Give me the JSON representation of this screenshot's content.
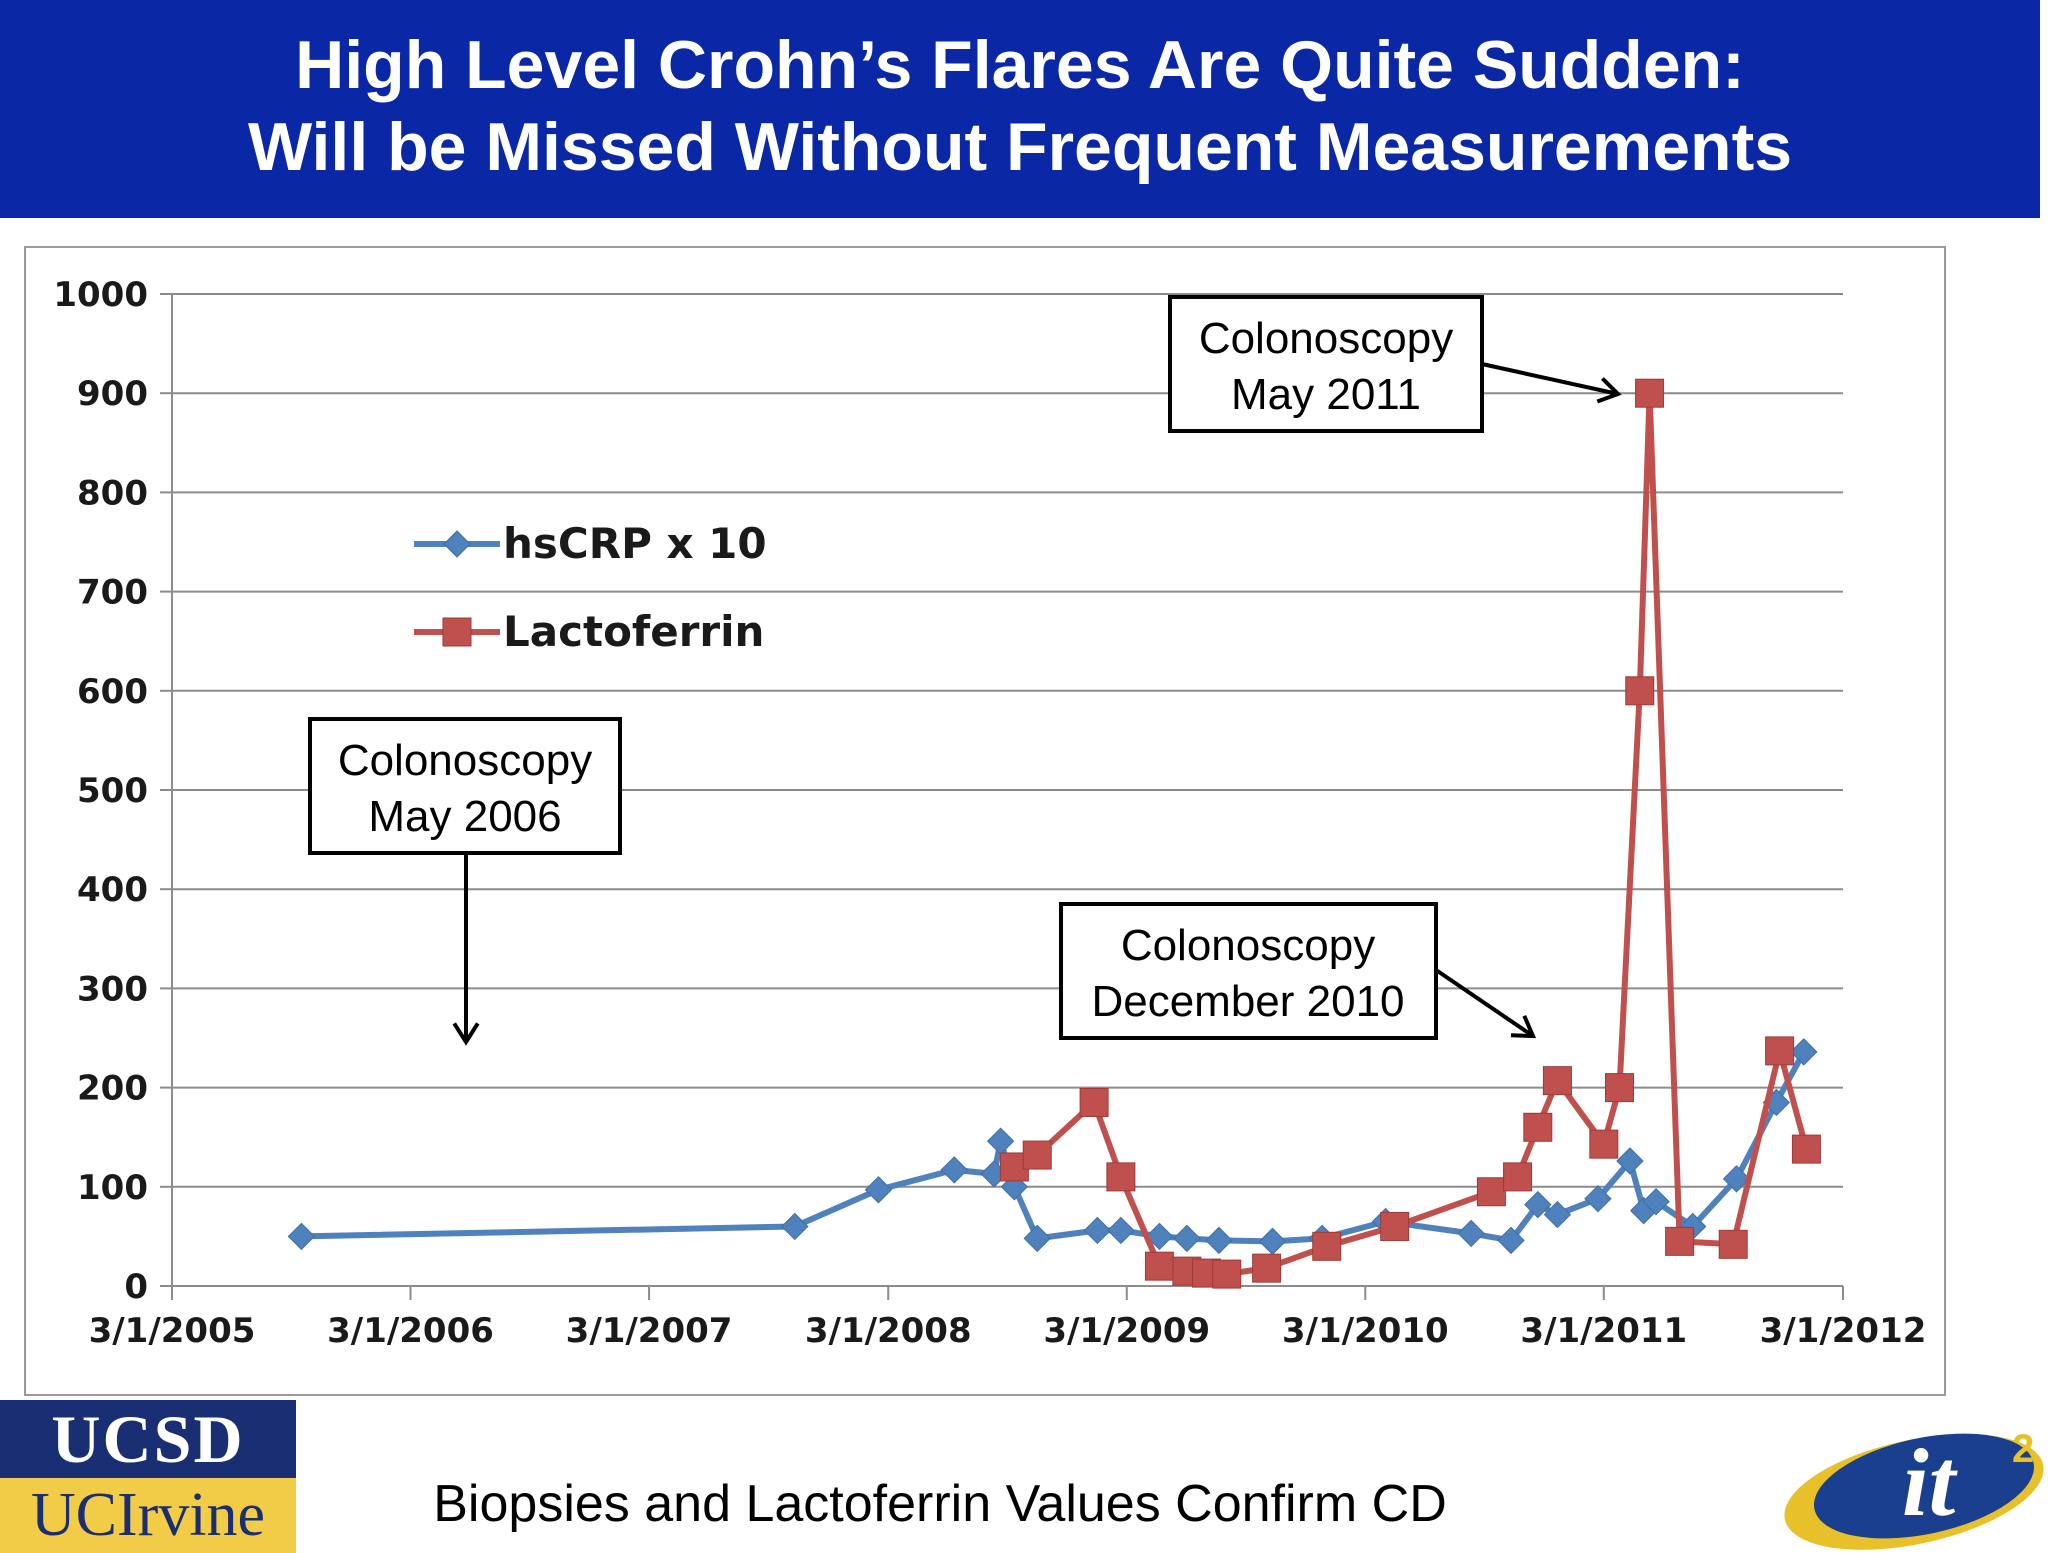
{
  "header": {
    "title_line1": "High Level Crohn’s Flares Are Quite Sudden:",
    "title_line2": "Will be Missed Without Frequent Measurements",
    "background": "#0a27a6"
  },
  "footer": {
    "caption": "Biopsies and Lactoferrin Values Confirm CD",
    "logo_top": "UCSD",
    "logo_bottom": "UCIrvine",
    "logo_right": "it",
    "logo_right_sup": "2"
  },
  "chart_data": {
    "type": "line",
    "ylim": [
      0,
      1000
    ],
    "yticks": [
      0,
      100,
      200,
      300,
      400,
      500,
      600,
      700,
      800,
      900,
      1000
    ],
    "xlim": [
      "2005-03-01",
      "2012-03-01"
    ],
    "xtick_labels": [
      "3/1/2005",
      "3/1/2006",
      "3/1/2007",
      "3/1/2008",
      "3/1/2009",
      "3/1/2010",
      "3/1/2011",
      "3/1/2012"
    ],
    "xtick_dates": [
      "2005-03-01",
      "2006-03-01",
      "2007-03-01",
      "2008-03-01",
      "2009-03-01",
      "2010-03-01",
      "2011-03-01",
      "2012-03-01"
    ],
    "grid": true,
    "legend_position": "upper-left",
    "series": [
      {
        "name": "hsCRP x 10",
        "color": "#4f81bd",
        "marker": "diamond",
        "points": [
          [
            "2005-09-15",
            50
          ],
          [
            "2007-10-10",
            60
          ],
          [
            "2008-02-15",
            97
          ],
          [
            "2008-06-10",
            117
          ],
          [
            "2008-08-10",
            113
          ],
          [
            "2008-08-20",
            146
          ],
          [
            "2008-09-10",
            100
          ],
          [
            "2008-10-15",
            48
          ],
          [
            "2009-01-15",
            56
          ],
          [
            "2009-02-20",
            56
          ],
          [
            "2009-04-20",
            50
          ],
          [
            "2009-06-01",
            48
          ],
          [
            "2009-07-20",
            46
          ],
          [
            "2009-10-10",
            45
          ],
          [
            "2009-12-25",
            48
          ],
          [
            "2010-04-01",
            65
          ],
          [
            "2010-08-10",
            53
          ],
          [
            "2010-10-10",
            46
          ],
          [
            "2010-11-20",
            82
          ],
          [
            "2010-12-20",
            72
          ],
          [
            "2011-02-20",
            88
          ],
          [
            "2011-04-10",
            126
          ],
          [
            "2011-05-01",
            76
          ],
          [
            "2011-05-20",
            85
          ],
          [
            "2011-07-15",
            60
          ],
          [
            "2011-09-20",
            108
          ],
          [
            "2011-11-20",
            185
          ],
          [
            "2012-01-01",
            236
          ]
        ]
      },
      {
        "name": "Lactoferrin",
        "color": "#c0504d",
        "marker": "square",
        "points": [
          [
            "2008-09-10",
            120
          ],
          [
            "2008-10-15",
            132
          ],
          [
            "2009-01-10",
            185
          ],
          [
            "2009-02-20",
            110
          ],
          [
            "2009-04-20",
            20
          ],
          [
            "2009-06-01",
            15
          ],
          [
            "2009-07-01",
            13
          ],
          [
            "2009-08-01",
            12
          ],
          [
            "2009-10-01",
            18
          ],
          [
            "2010-01-01",
            40
          ],
          [
            "2010-04-15",
            60
          ],
          [
            "2010-09-10",
            95
          ],
          [
            "2010-10-20",
            110
          ],
          [
            "2010-11-20",
            160
          ],
          [
            "2010-12-20",
            207
          ],
          [
            "2011-03-01",
            143
          ],
          [
            "2011-03-25",
            200
          ],
          [
            "2011-04-25",
            600
          ],
          [
            "2011-05-10",
            900
          ],
          [
            "2011-06-25",
            45
          ],
          [
            "2011-09-15",
            42
          ],
          [
            "2011-11-25",
            237
          ],
          [
            "2012-01-05",
            138
          ]
        ]
      }
    ],
    "annotations": [
      {
        "line1": "Colonoscopy",
        "line2": "May 2006"
      },
      {
        "line1": "Colonoscopy",
        "line2": "December 2010"
      },
      {
        "line1": "Colonoscopy",
        "line2": "May 2011"
      }
    ]
  }
}
